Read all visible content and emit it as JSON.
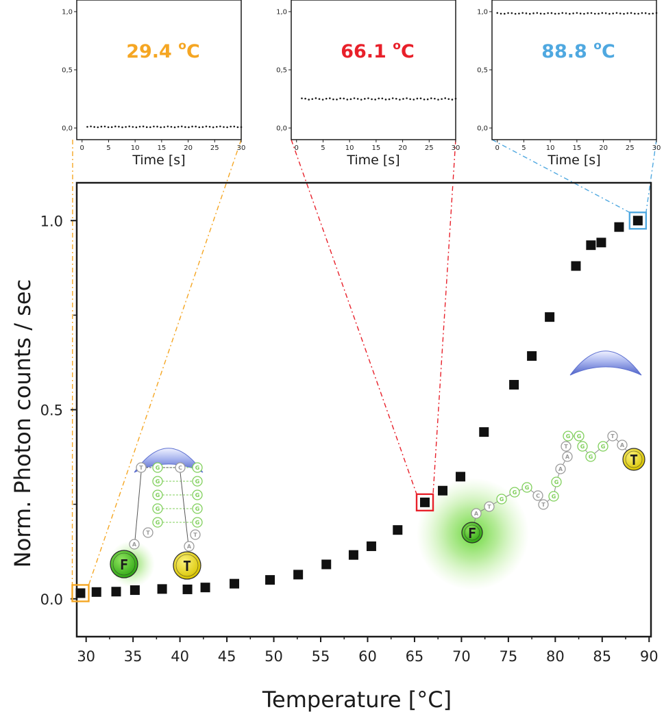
{
  "colors": {
    "inset_1": "#f5a623",
    "inset_2": "#e8202a",
    "inset_3": "#4fa8e0",
    "marker": "#111111",
    "dye_F": "#4cc32a",
    "dye_T": "#e6e22a",
    "base_green": "#7fcf5a",
    "base_gray": "#9a9a9a",
    "cap": "#6a7fd6"
  },
  "icons": {
    "fluorophore": "green-fluorophore-icon",
    "quencher": "yellow-quencher-icon",
    "cap": "blue-crescent-icon"
  },
  "labels": {
    "dye_F": "F",
    "dye_T": "T",
    "hairpin_strand_1": [
      "T",
      "G",
      "G",
      "G",
      "G",
      "G",
      "T",
      "A"
    ],
    "hairpin_strand_2": [
      "C",
      "G",
      "G",
      "G",
      "G",
      "G",
      "T",
      "A"
    ],
    "open_strand": [
      "A",
      "T",
      "G",
      "G",
      "G",
      "C",
      "T",
      "G",
      "G",
      "A",
      "A",
      "T",
      "G",
      "G",
      "G",
      "G",
      "G",
      "T",
      "A"
    ]
  },
  "chart_data": [
    {
      "type": "scatter",
      "role": "main",
      "xlabel": "Temperature [°C]",
      "ylabel": "Norm. Photon counts / sec",
      "xlim": [
        29,
        90.2
      ],
      "ylim": [
        -0.1,
        1.1
      ],
      "xticks": [
        "30",
        "35",
        "40",
        "45",
        "50",
        "55",
        "60",
        "65",
        "70",
        "75",
        "80",
        "85",
        "90"
      ],
      "yticks": [
        "0.0",
        "0.5",
        "1.0"
      ],
      "grid": false,
      "marker": "square",
      "x": [
        29.4,
        31.1,
        33.2,
        35.2,
        38.1,
        40.8,
        42.7,
        45.8,
        49.6,
        52.6,
        55.6,
        58.5,
        60.4,
        63.2,
        66.1,
        68.0,
        69.9,
        72.4,
        75.6,
        77.5,
        79.4,
        82.2,
        83.8,
        84.9,
        86.8,
        88.8
      ],
      "y": [
        0.015,
        0.018,
        0.019,
        0.023,
        0.026,
        0.025,
        0.03,
        0.04,
        0.05,
        0.064,
        0.091,
        0.116,
        0.139,
        0.182,
        0.255,
        0.286,
        0.323,
        0.441,
        0.566,
        0.642,
        0.745,
        0.88,
        0.935,
        0.942,
        0.983,
        1.0
      ],
      "highlights": [
        {
          "x": 29.4,
          "y": 0.015,
          "color": "#f5a623"
        },
        {
          "x": 66.1,
          "y": 0.255,
          "color": "#e8202a"
        },
        {
          "x": 88.8,
          "y": 1.0,
          "color": "#4fa8e0"
        }
      ]
    },
    {
      "type": "scatter",
      "role": "inset",
      "annotation": "29.4 ºC",
      "color": "#f5a623",
      "xlabel": "Time [s]",
      "xlim": [
        -1,
        30
      ],
      "ylim": [
        -0.1,
        1.1
      ],
      "xticks": [
        "0",
        "5",
        "10",
        "15",
        "20",
        "25",
        "30"
      ],
      "yticks": [
        "0,0",
        "0,5",
        "1,0"
      ],
      "trace_start": 1,
      "trace_end": 30,
      "trace_level": 0.01,
      "trace_jitter": 0.004
    },
    {
      "type": "scatter",
      "role": "inset",
      "annotation": "66.1 ºC",
      "color": "#e8202a",
      "xlabel": "Time [s]",
      "xlim": [
        -1,
        30
      ],
      "ylim": [
        -0.1,
        1.1
      ],
      "xticks": [
        "0",
        "5",
        "10",
        "15",
        "20",
        "25",
        "30"
      ],
      "yticks": [
        "0,0",
        "0,5",
        "1,0"
      ],
      "trace_start": 1,
      "trace_end": 30,
      "trace_level": 0.25,
      "trace_jitter": 0.006
    },
    {
      "type": "scatter",
      "role": "inset",
      "annotation": "88.8 ºC",
      "color": "#4fa8e0",
      "xlabel": "Time [s]",
      "xlim": [
        -1,
        30
      ],
      "ylim": [
        -0.1,
        1.1
      ],
      "xticks": [
        "0",
        "5",
        "10",
        "15",
        "20",
        "25",
        "30"
      ],
      "yticks": [
        "0,0",
        "0,5",
        "1,0"
      ],
      "trace_start": 0,
      "trace_end": 30,
      "trace_level": 0.985,
      "trace_jitter": 0.004
    }
  ]
}
